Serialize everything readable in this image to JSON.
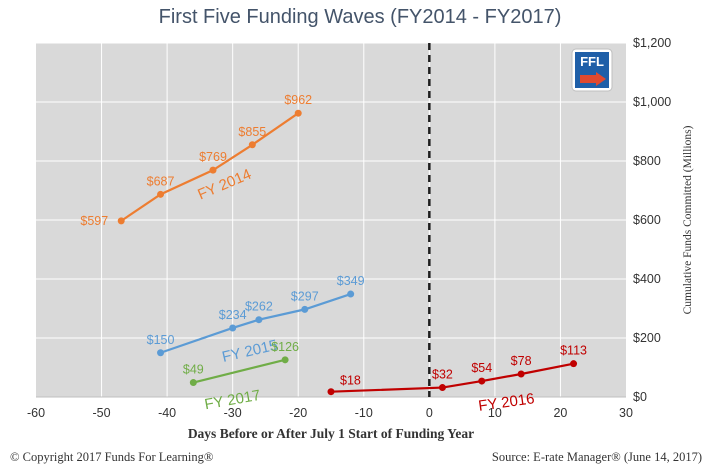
{
  "header": {
    "title": "First Five Funding Waves (FY2014 - FY2017)"
  },
  "footer": {
    "copyright": "© Copyright 2017 Funds For Learning®",
    "source": "Source: E-rate Manager® (June 14, 2017)"
  },
  "logo": {
    "text": "FFL",
    "icon": "ffl-logo-icon"
  },
  "colors": {
    "plot_bg": "#d9d9d9",
    "grid": "#ffffff",
    "fy2014": "#ed7d31",
    "fy2015": "#5b9bd5",
    "fy2016": "#c00000",
    "fy2017": "#70ad47",
    "reference_line": "#1f1f1f"
  },
  "chart_data": {
    "type": "line",
    "title": "First Five Funding Waves (FY2014 - FY2017)",
    "xlabel": "Days Before or After July 1 Start of Funding Year",
    "ylabel": "Cumulative Funds Committed (Millions)",
    "xlim": [
      -60,
      30
    ],
    "ylim": [
      0,
      1200
    ],
    "x_ticks": [
      -60,
      -50,
      -40,
      -30,
      -20,
      -10,
      0,
      10,
      20,
      30
    ],
    "x_tick_labels": [
      "-60",
      "-50",
      "-40",
      "-30",
      "-20",
      "-10",
      "0",
      "10",
      "20",
      "30"
    ],
    "y_ticks": [
      0,
      200,
      400,
      600,
      800,
      1000,
      1200
    ],
    "y_tick_labels": [
      "$0",
      "$200",
      "$400",
      "$600",
      "$800",
      "$1,000",
      "$1,200"
    ],
    "y_axis_side": "right",
    "grid": true,
    "reference_line": {
      "x": 0,
      "style": "dashed"
    },
    "series": [
      {
        "name": "FY 2014",
        "x": [
          -47,
          -41,
          -33,
          -27,
          -20
        ],
        "y": [
          597,
          687,
          769,
          855,
          962
        ],
        "labels": [
          "$597",
          "$687",
          "$769",
          "$855",
          "$962"
        ]
      },
      {
        "name": "FY 2015",
        "x": [
          -41,
          -30,
          -26,
          -19,
          -12
        ],
        "y": [
          150,
          234,
          262,
          297,
          349
        ],
        "labels": [
          "$150",
          "$234",
          "$262",
          "$297",
          "$349"
        ]
      },
      {
        "name": "FY 2016",
        "x": [
          -15,
          2,
          8,
          14,
          22
        ],
        "y": [
          18,
          32,
          54,
          78,
          113
        ],
        "labels": [
          "$18",
          "$32",
          "$54",
          "$78",
          "$113"
        ]
      },
      {
        "name": "FY 2017",
        "x": [
          -36,
          -22
        ],
        "y": [
          49,
          126
        ],
        "labels": [
          "$49",
          "$126"
        ]
      }
    ]
  }
}
